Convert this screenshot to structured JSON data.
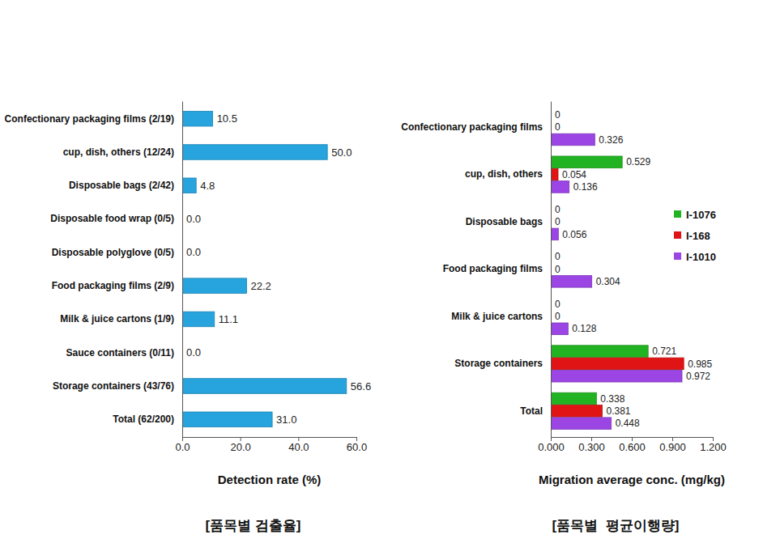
{
  "chart_data": [
    {
      "type": "bar",
      "orientation": "horizontal",
      "title": "[품목별 검출율]",
      "x_label": "Detection rate (%)",
      "categories": [
        "Confectionary packaging films (2/19)",
        "cup, dish, others (12/24)",
        "Disposable bags (2/42)",
        "Disposable food wrap (0/5)",
        "Disposable polyglove (0/5)",
        "Food packaging films (2/9)",
        "Milk & juice cartons (1/9)",
        "Sauce containers (0/11)",
        "Storage containers (43/76)",
        "Total (62/200)"
      ],
      "values": [
        10.5,
        50.0,
        4.8,
        0.0,
        0.0,
        22.2,
        11.1,
        0.0,
        56.6,
        31.0
      ],
      "value_labels": [
        "10.5",
        "50.0",
        "4.8",
        "0.0",
        "0.0",
        "22.2",
        "11.1",
        "0.0",
        "56.6",
        "31.0"
      ],
      "color": "#27a4dd",
      "data_labels": true,
      "grid": false,
      "xlim": [
        0,
        60
      ],
      "xticks": [
        {
          "value": 0,
          "label": "0.0"
        },
        {
          "value": 20,
          "label": "20.0"
        },
        {
          "value": 40,
          "label": "40.0"
        },
        {
          "value": 60,
          "label": "60.0"
        }
      ]
    },
    {
      "type": "bar",
      "orientation": "horizontal",
      "title": "[품목별  평균이행량]",
      "x_label": "Migration average conc. (mg/kg)",
      "categories": [
        "Confectionary packaging films",
        "cup, dish, others",
        "Disposable bags",
        "Food packaging films",
        "Milk & juice cartons",
        "Storage containers",
        "Total"
      ],
      "series": [
        {
          "name": "I-1076",
          "color": "#22b322",
          "values": [
            0,
            0.529,
            0,
            0,
            0,
            0.721,
            0.338
          ]
        },
        {
          "name": "I-168",
          "color": "#e01414",
          "values": [
            0,
            0.054,
            0,
            0,
            0,
            0.985,
            0.381
          ]
        },
        {
          "name": "I-1010",
          "color": "#9b45e4",
          "values": [
            0.326,
            0.136,
            0.056,
            0.304,
            0.128,
            0.972,
            0.448
          ]
        }
      ],
      "data_labels": true,
      "grid": false,
      "legend": "right",
      "xlim": [
        0,
        1.2
      ],
      "xticks": [
        {
          "value": 0,
          "label": "0.000"
        },
        {
          "value": 0.3,
          "label": "0.300"
        },
        {
          "value": 0.6,
          "label": "0.600"
        },
        {
          "value": 0.9,
          "label": "0.900"
        },
        {
          "value": 1.2,
          "label": "1.200"
        }
      ]
    }
  ]
}
